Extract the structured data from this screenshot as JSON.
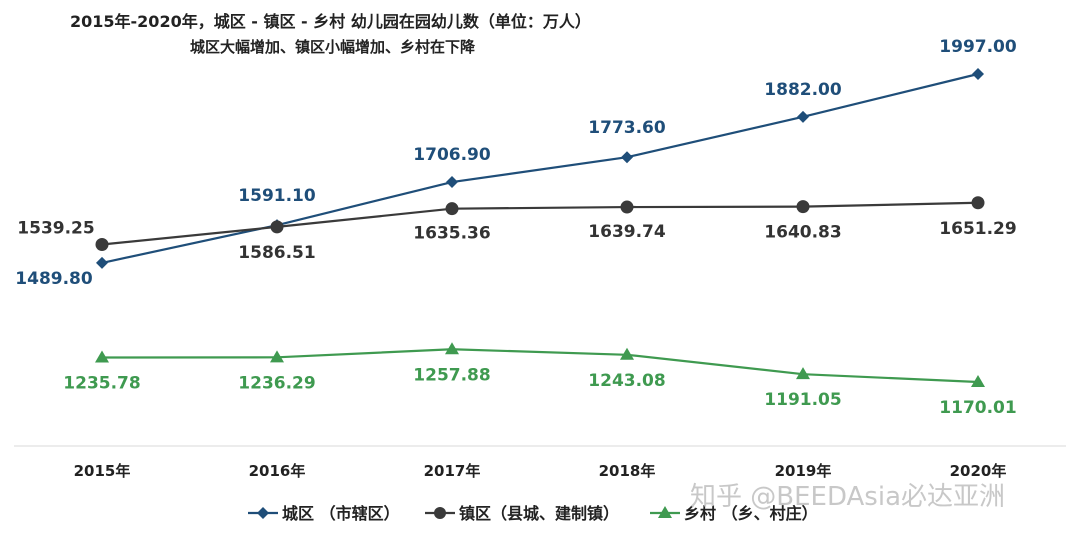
{
  "chart_data": {
    "type": "line",
    "title": "2015年-2020年，城区 - 镇区 - 乡村 幼儿园在园幼儿数（单位：万人）",
    "subtitle": "城区大幅增加、镇区小幅增加、乡村在下降",
    "categories": [
      "2015年",
      "2016年",
      "2017年",
      "2018年",
      "2019年",
      "2020年"
    ],
    "ylim": [
      1000,
      2100
    ],
    "grid": false,
    "legend_position": "bottom",
    "series": [
      {
        "name": "城区 （市辖区）",
        "color": "#1f4e79",
        "marker": "diamond",
        "values": [
          1489.8,
          1591.1,
          1706.9,
          1773.6,
          1882.0,
          1997.0
        ],
        "labels": [
          "1489.80",
          "1591.10",
          "1706.90",
          "1773.60",
          "1882.00",
          "1997.00"
        ]
      },
      {
        "name": "镇区（县城、建制镇）",
        "color": "#3a3a3a",
        "marker": "circle",
        "values": [
          1539.25,
          1586.51,
          1635.36,
          1639.74,
          1640.83,
          1651.29
        ],
        "labels": [
          "1539.25",
          "1586.51",
          "1635.36",
          "1639.74",
          "1640.83",
          "1651.29"
        ]
      },
      {
        "name": "乡村 （乡、村庄）",
        "color": "#3f9a50",
        "marker": "triangle",
        "values": [
          1235.78,
          1236.29,
          1257.88,
          1243.08,
          1191.05,
          1170.01
        ],
        "labels": [
          "1235.78",
          "1236.29",
          "1257.88",
          "1243.08",
          "1191.05",
          "1170.01"
        ]
      }
    ]
  },
  "watermark": "知乎 @BEEDAsia必达亚洲"
}
